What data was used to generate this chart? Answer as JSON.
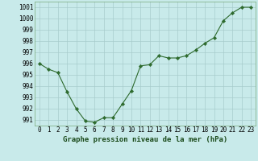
{
  "x": [
    0,
    1,
    2,
    3,
    4,
    5,
    6,
    7,
    8,
    9,
    10,
    11,
    12,
    13,
    14,
    15,
    16,
    17,
    18,
    19,
    20,
    21,
    22,
    23
  ],
  "y": [
    996.0,
    995.5,
    995.2,
    993.5,
    992.0,
    990.9,
    990.8,
    991.2,
    991.2,
    992.4,
    993.6,
    995.8,
    995.9,
    996.7,
    996.5,
    996.5,
    996.7,
    997.2,
    997.8,
    998.3,
    999.8,
    1000.5,
    1001.0,
    1001.0
  ],
  "line_color": "#2d6a2d",
  "marker_color": "#2d6a2d",
  "bg_color": "#c8eaea",
  "grid_color": "#a8cccc",
  "xlabel": "Graphe pression niveau de la mer (hPa)",
  "ylabel_ticks": [
    991,
    992,
    993,
    994,
    995,
    996,
    997,
    998,
    999,
    1000,
    1001
  ],
  "ylim": [
    990.5,
    1001.5
  ],
  "xlim": [
    -0.5,
    23.5
  ],
  "xticks": [
    0,
    1,
    2,
    3,
    4,
    5,
    6,
    7,
    8,
    9,
    10,
    11,
    12,
    13,
    14,
    15,
    16,
    17,
    18,
    19,
    20,
    21,
    22,
    23
  ],
  "xlabel_fontsize": 6.5,
  "tick_fontsize": 5.5
}
